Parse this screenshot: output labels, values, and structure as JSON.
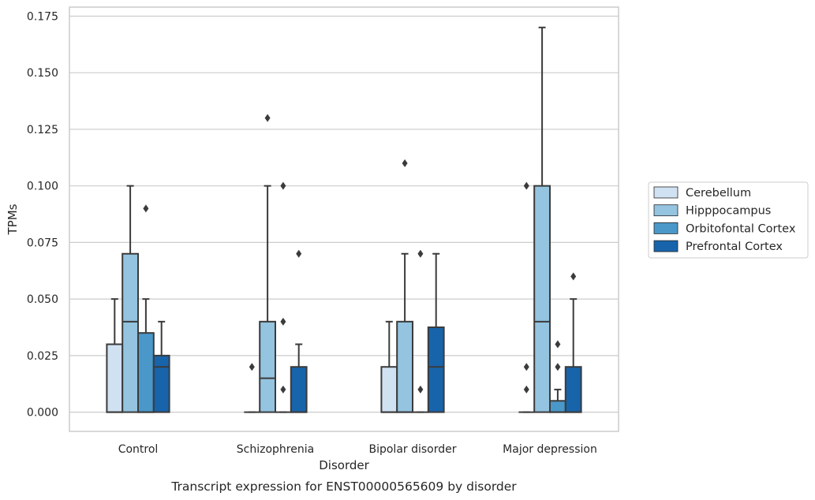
{
  "chart_data": {
    "type": "box",
    "title": "",
    "caption": "Transcript expression for ENST00000565609 by disorder",
    "xlabel": "Disorder",
    "ylabel": "TPMs",
    "ylim": [
      -0.0085,
      0.179
    ],
    "yticks": [
      "0.000",
      "0.025",
      "0.050",
      "0.075",
      "0.100",
      "0.125",
      "0.150",
      "0.175"
    ],
    "ytick_values": [
      0,
      0.025,
      0.05,
      0.075,
      0.1,
      0.125,
      0.15,
      0.175
    ],
    "grid": true,
    "legend_position": "right",
    "categories": [
      "Control",
      "Schizophrenia",
      "Bipolar disorder",
      "Major depression"
    ],
    "series": [
      {
        "name": "Cerebellum",
        "color": "#d0e1f2",
        "boxes": [
          {
            "q1": 0,
            "median": 0,
            "q3": 0.03,
            "whisker_low": 0,
            "whisker_high": 0.05,
            "outliers": []
          },
          {
            "q1": 0,
            "median": 0,
            "q3": 0,
            "whisker_low": 0,
            "whisker_high": 0,
            "outliers": [
              0.02
            ]
          },
          {
            "q1": 0,
            "median": 0,
            "q3": 0.02,
            "whisker_low": 0,
            "whisker_high": 0.04,
            "outliers": []
          },
          {
            "q1": 0,
            "median": 0,
            "q3": 0,
            "whisker_low": 0,
            "whisker_high": 0,
            "outliers": [
              0.01,
              0.02,
              0.1
            ]
          }
        ]
      },
      {
        "name": "Hipppocampus",
        "color": "#94c4df",
        "boxes": [
          {
            "q1": 0,
            "median": 0.04,
            "q3": 0.07,
            "whisker_low": 0,
            "whisker_high": 0.1,
            "outliers": []
          },
          {
            "q1": 0,
            "median": 0.015,
            "q3": 0.04,
            "whisker_low": 0,
            "whisker_high": 0.1,
            "outliers": [
              0.13
            ]
          },
          {
            "q1": 0,
            "median": 0,
            "q3": 0.04,
            "whisker_low": 0,
            "whisker_high": 0.07,
            "outliers": [
              0.11
            ]
          },
          {
            "q1": 0,
            "median": 0.04,
            "q3": 0.1,
            "whisker_low": 0,
            "whisker_high": 0.17,
            "outliers": []
          }
        ]
      },
      {
        "name": "Orbitofontal Cortex",
        "color": "#4a98c9",
        "boxes": [
          {
            "q1": 0,
            "median": 0,
            "q3": 0.035,
            "whisker_low": 0,
            "whisker_high": 0.05,
            "outliers": [
              0.09
            ]
          },
          {
            "q1": 0,
            "median": 0,
            "q3": 0,
            "whisker_low": 0,
            "whisker_high": 0,
            "outliers": [
              0.01,
              0.04,
              0.1
            ]
          },
          {
            "q1": 0,
            "median": 0,
            "q3": 0,
            "whisker_low": 0,
            "whisker_high": 0,
            "outliers": [
              0.01,
              0.07
            ]
          },
          {
            "q1": 0,
            "median": 0,
            "q3": 0.005,
            "whisker_low": 0,
            "whisker_high": 0.01,
            "outliers": [
              0.02,
              0.03
            ]
          }
        ]
      },
      {
        "name": "Prefrontal Cortex",
        "color": "#1764ab",
        "boxes": [
          {
            "q1": 0,
            "median": 0.02,
            "q3": 0.025,
            "whisker_low": 0,
            "whisker_high": 0.04,
            "outliers": []
          },
          {
            "q1": 0,
            "median": 0,
            "q3": 0.02,
            "whisker_low": 0,
            "whisker_high": 0.03,
            "outliers": [
              0.07
            ]
          },
          {
            "q1": 0,
            "median": 0.02,
            "q3": 0.0375,
            "whisker_low": 0,
            "whisker_high": 0.07,
            "outliers": []
          },
          {
            "q1": 0,
            "median": 0,
            "q3": 0.02,
            "whisker_low": 0,
            "whisker_high": 0.05,
            "outliers": [
              0.06
            ]
          }
        ]
      }
    ]
  }
}
